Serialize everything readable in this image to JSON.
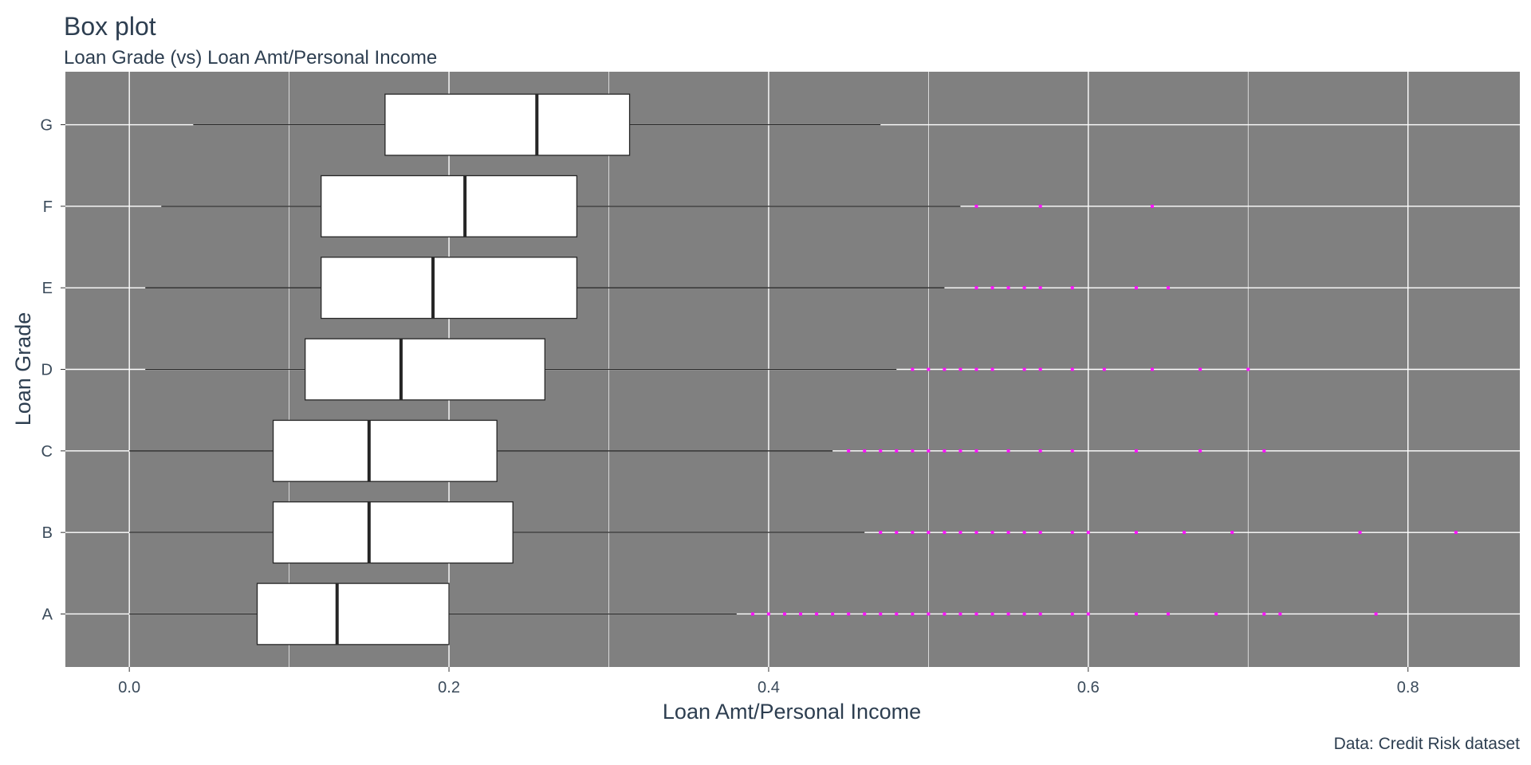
{
  "chart_data": {
    "type": "box",
    "title": "Box plot",
    "subtitle": "Loan Grade (vs) Loan Amt/Personal Income",
    "xlabel": "Loan Amt/Personal Income",
    "ylabel": "Loan Grade",
    "caption": "Data: Credit Risk dataset",
    "xlim": [
      -0.04,
      0.87
    ],
    "x_ticks": [
      0.0,
      0.2,
      0.4,
      0.6,
      0.8
    ],
    "x_tick_labels": [
      "0.0",
      "0.2",
      "0.4",
      "0.6",
      "0.8"
    ],
    "grid": true,
    "colors": {
      "panel_background": "#808080",
      "grid": "#ffffff",
      "box_fill": "#ffffff",
      "box_outline": "#262626",
      "outlier": "#ff00ff"
    },
    "categories": [
      "A",
      "B",
      "C",
      "D",
      "E",
      "F",
      "G"
    ],
    "series": [
      {
        "category": "A",
        "min": 0.0,
        "q1": 0.08,
        "median": 0.13,
        "q3": 0.2,
        "max": 0.38,
        "outliers": [
          0.39,
          0.4,
          0.41,
          0.42,
          0.43,
          0.44,
          0.45,
          0.46,
          0.47,
          0.48,
          0.49,
          0.5,
          0.51,
          0.52,
          0.53,
          0.54,
          0.55,
          0.56,
          0.57,
          0.59,
          0.6,
          0.63,
          0.65,
          0.68,
          0.71,
          0.72,
          0.78
        ]
      },
      {
        "category": "B",
        "min": 0.0,
        "q1": 0.09,
        "median": 0.15,
        "q3": 0.24,
        "max": 0.46,
        "outliers": [
          0.47,
          0.48,
          0.49,
          0.5,
          0.51,
          0.52,
          0.53,
          0.54,
          0.55,
          0.56,
          0.57,
          0.59,
          0.6,
          0.63,
          0.66,
          0.69,
          0.77,
          0.83
        ]
      },
      {
        "category": "C",
        "min": 0.0,
        "q1": 0.09,
        "median": 0.15,
        "q3": 0.23,
        "max": 0.44,
        "outliers": [
          0.45,
          0.46,
          0.47,
          0.48,
          0.49,
          0.5,
          0.51,
          0.52,
          0.53,
          0.55,
          0.57,
          0.59,
          0.63,
          0.67,
          0.71
        ]
      },
      {
        "category": "D",
        "min": 0.01,
        "q1": 0.11,
        "median": 0.17,
        "q3": 0.26,
        "max": 0.48,
        "outliers": [
          0.49,
          0.5,
          0.51,
          0.52,
          0.53,
          0.54,
          0.56,
          0.57,
          0.59,
          0.61,
          0.64,
          0.67,
          0.7
        ]
      },
      {
        "category": "E",
        "min": 0.01,
        "q1": 0.12,
        "median": 0.19,
        "q3": 0.28,
        "max": 0.51,
        "outliers": [
          0.53,
          0.54,
          0.55,
          0.56,
          0.57,
          0.59,
          0.63,
          0.65
        ]
      },
      {
        "category": "F",
        "min": 0.02,
        "q1": 0.12,
        "median": 0.21,
        "q3": 0.28,
        "max": 0.52,
        "outliers": [
          0.53,
          0.57,
          0.64
        ]
      },
      {
        "category": "G",
        "min": 0.04,
        "q1": 0.16,
        "median": 0.255,
        "q3": 0.313,
        "max": 0.47,
        "outliers": []
      }
    ]
  }
}
